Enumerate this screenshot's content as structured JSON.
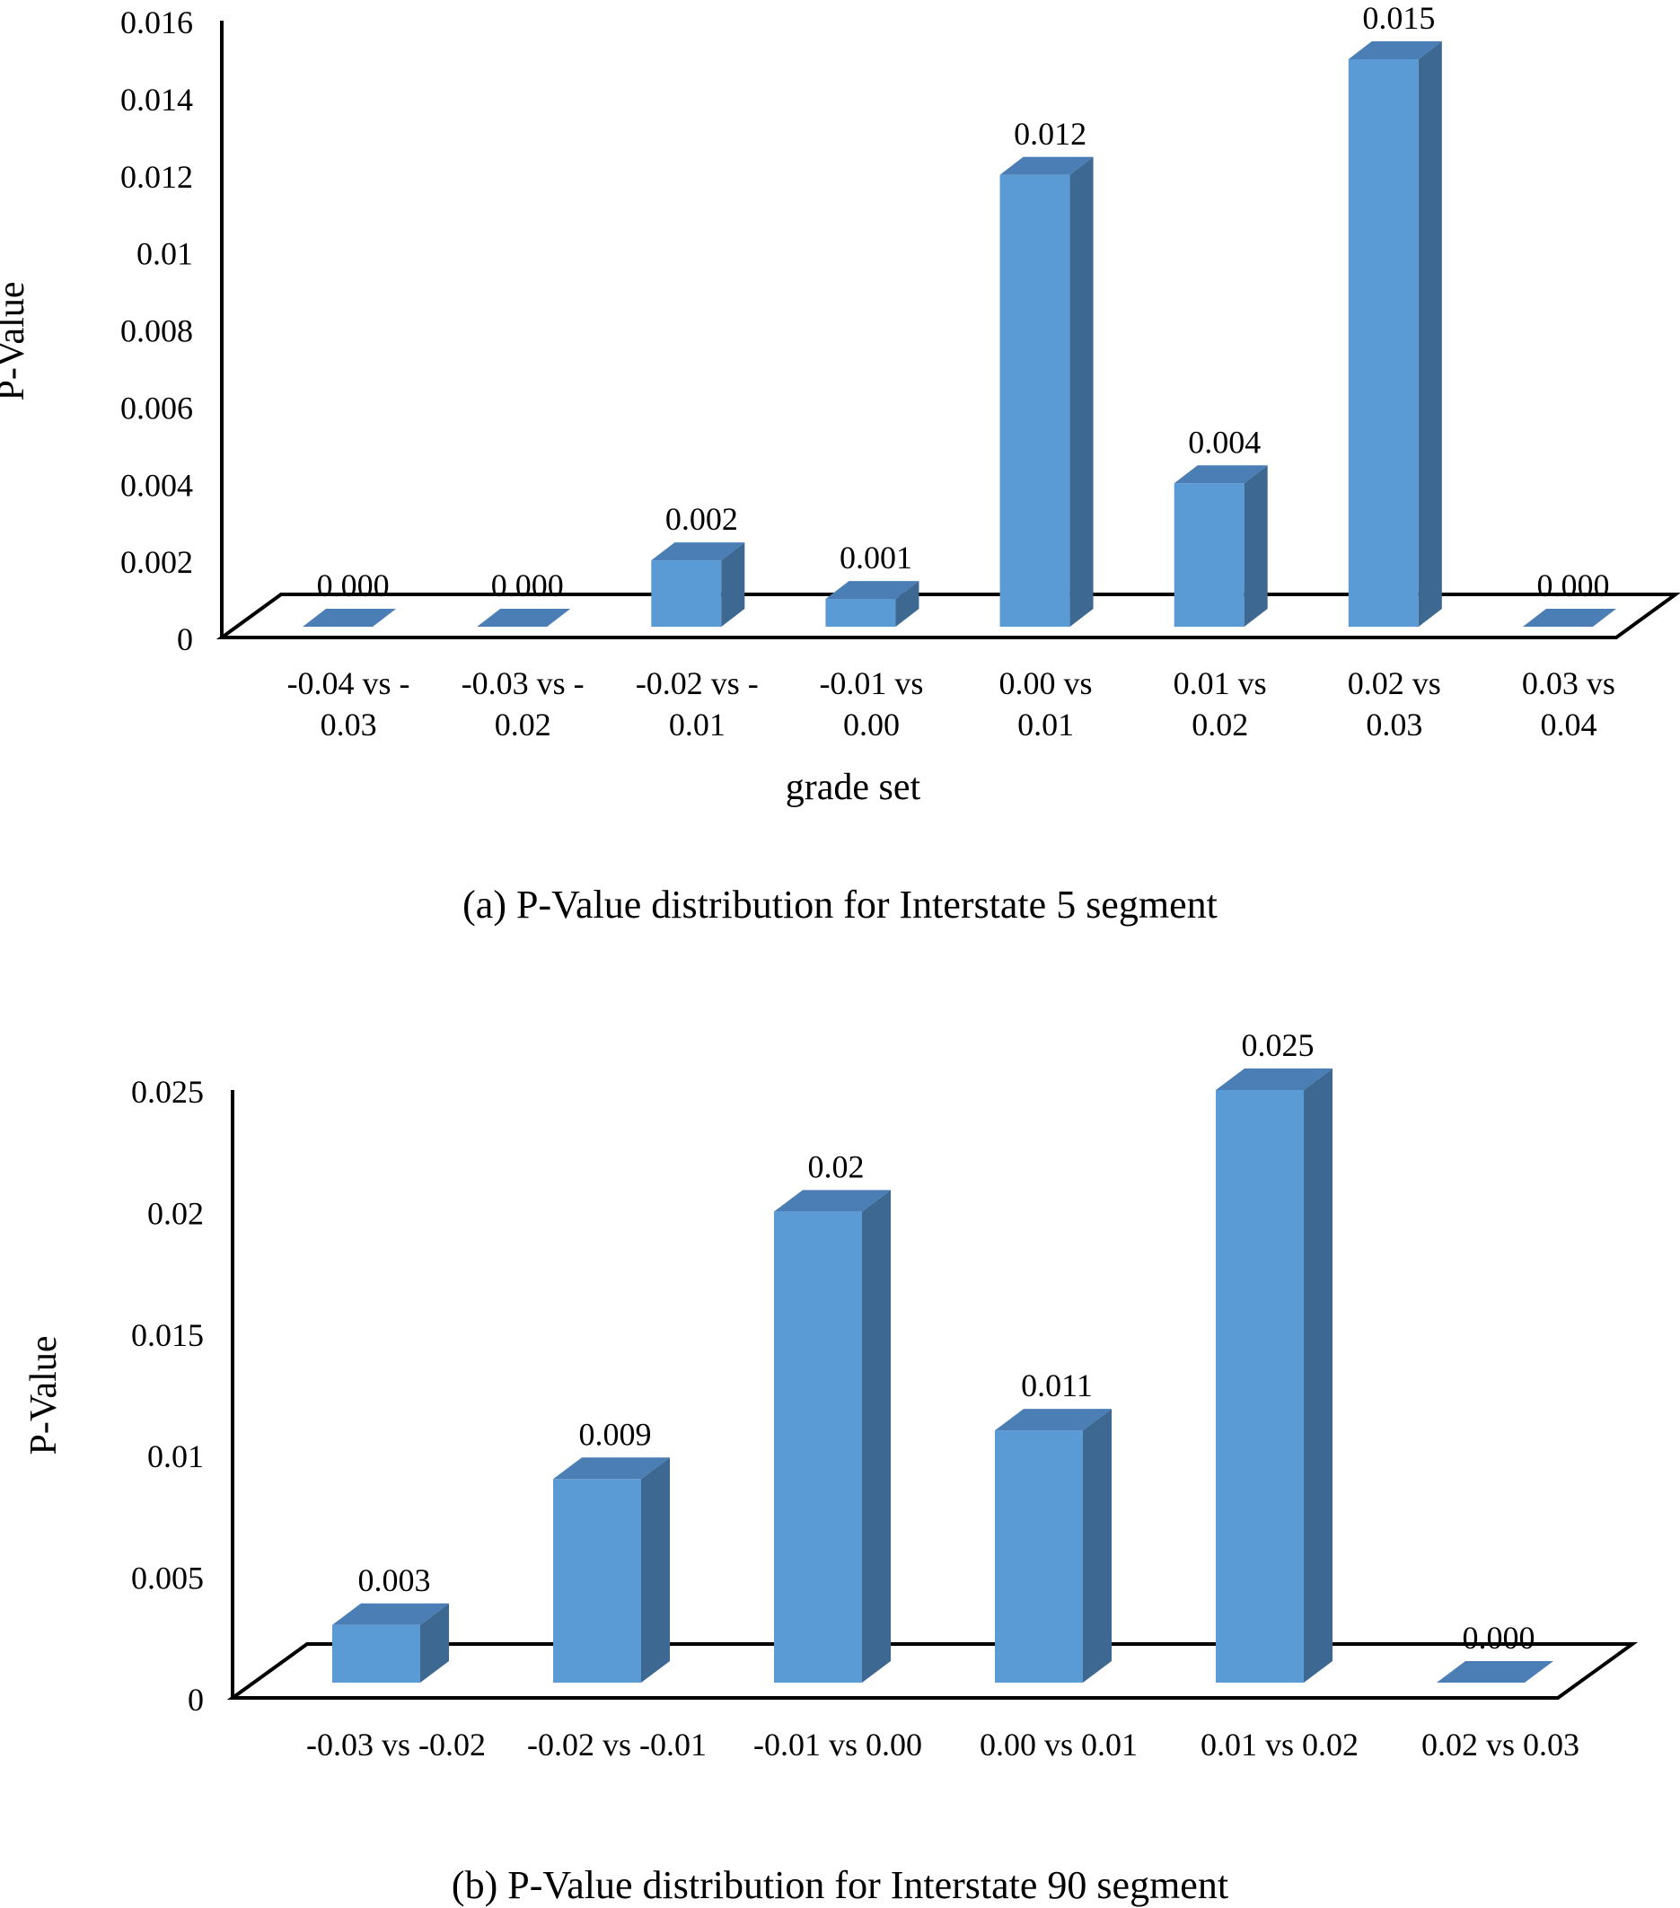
{
  "chart_data": [
    {
      "type": "bar",
      "style": "3d-column",
      "categories": [
        "-0.04 vs -0.03",
        "-0.03 vs -0.02",
        "-0.02 vs -0.01",
        "-0.01 vs 0.00",
        "0.00 vs 0.01",
        "0.01 vs 0.02",
        "0.02 vs 0.03",
        "0.03 vs 0.04"
      ],
      "category_labels": [
        [
          "-0.04 vs -",
          "0.03"
        ],
        [
          "-0.03 vs -",
          "0.02"
        ],
        [
          "-0.02 vs -",
          "0.01"
        ],
        [
          "-0.01 vs",
          "0.00"
        ],
        [
          "0.00 vs",
          "0.01"
        ],
        [
          "0.01 vs",
          "0.02"
        ],
        [
          "0.02 vs",
          "0.03"
        ],
        [
          "0.03 vs",
          "0.04"
        ]
      ],
      "values": [
        0.0,
        0.0,
        0.002,
        0.001,
        0.012,
        0.004,
        0.015,
        0.0
      ],
      "data_labels": [
        "0.000",
        "0.000",
        "0.002",
        "0.001",
        "0.012",
        "0.004",
        "0.015",
        "0.000"
      ],
      "ylim": [
        0,
        0.016
      ],
      "yticks": [
        0,
        0.002,
        0.004,
        0.006,
        0.008,
        0.01,
        0.012,
        0.014,
        0.016
      ],
      "ytick_labels": [
        "0",
        "0.002",
        "0.004",
        "0.006",
        "0.008",
        "0.01",
        "0.012",
        "0.014",
        "0.016"
      ],
      "ylabel": "P-Value",
      "xlabel": "grade set",
      "caption": "(a) P-Value distribution for Interstate 5 segment",
      "grid": false,
      "legend": "none",
      "colors": {
        "bar_front": "#5b9bd5",
        "bar_side": "#3d6891",
        "bar_top": "#4a7eb5",
        "axis": "#000000"
      }
    },
    {
      "type": "bar",
      "style": "3d-column",
      "categories": [
        "-0.03 vs -0.02",
        "-0.02 vs -0.01",
        "-0.01 vs 0.00",
        "0.00 vs 0.01",
        "0.01 vs 0.02",
        "0.02 vs 0.03"
      ],
      "category_labels": [
        [
          "-0.03 vs -0.02"
        ],
        [
          "-0.02 vs -0.01"
        ],
        [
          "-0.01 vs 0.00"
        ],
        [
          "0.00 vs 0.01"
        ],
        [
          "0.01 vs 0.02"
        ],
        [
          "0.02 vs 0.03"
        ]
      ],
      "values": [
        0.003,
        0.009,
        0.02,
        0.011,
        0.025,
        0.0
      ],
      "data_labels": [
        "0.003",
        "0.009",
        "0.02",
        "0.011",
        "0.025",
        "0.000"
      ],
      "ylim": [
        0,
        0.025
      ],
      "yticks": [
        0,
        0.005,
        0.01,
        0.015,
        0.02,
        0.025
      ],
      "ytick_labels": [
        "0",
        "0.005",
        "0.01",
        "0.015",
        "0.02",
        "0.025"
      ],
      "ylabel": "P-Value",
      "xlabel": "",
      "caption": "(b) P-Value distribution for Interstate 90 segment",
      "grid": false,
      "legend": "none",
      "colors": {
        "bar_front": "#5b9bd5",
        "bar_side": "#3d6891",
        "bar_top": "#4a7eb5",
        "axis": "#000000"
      }
    }
  ]
}
